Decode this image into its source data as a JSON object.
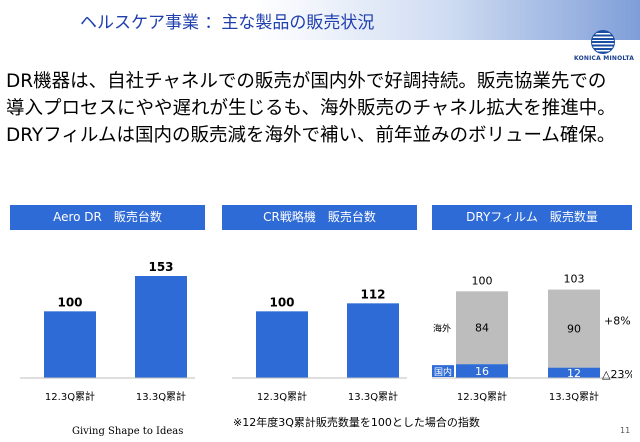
{
  "header": {
    "title": "ヘルスケア事業 ：主な製品の販売状況",
    "logo_text": "KONICA MINOLTA"
  },
  "summary": {
    "lines": [
      "DR機器は、自社チャネルでの販売が国内外で好調持続。販売協業先での",
      "導入プロセスにやや遅れが生じるも、海外販売のチャネル拡大を推進中。",
      "DRYフィルムは国内の販売減を海外で補い、前年並みのボリューム確保。"
    ]
  },
  "chart_data": [
    {
      "type": "bar",
      "title": "Aero DR　販売台数",
      "categories": [
        "12.3Q累計",
        "13.3Q累計"
      ],
      "values": [
        100,
        153
      ],
      "ylim": [
        0,
        165
      ],
      "bar_color": "#2e6bd6"
    },
    {
      "type": "bar",
      "title": "CR戦略機　販売台数",
      "categories": [
        "12.3Q累計",
        "13.3Q累計"
      ],
      "values": [
        100,
        112
      ],
      "ylim": [
        0,
        165
      ],
      "bar_color": "#2e6bd6"
    },
    {
      "type": "bar",
      "stacked": true,
      "title": "DRYフィルム　販売数量",
      "categories": [
        "12.3Q累計",
        "13.3Q累計"
      ],
      "totals": [
        100,
        103
      ],
      "series": [
        {
          "name": "国内",
          "values": [
            16,
            12
          ],
          "color": "#2e6bd6"
        },
        {
          "name": "海外",
          "values": [
            84,
            90
          ],
          "color": "#bdbdbd"
        }
      ],
      "changes": {
        "海外": "+8%",
        "国内": "△23%"
      },
      "ylim": [
        0,
        120
      ]
    }
  ],
  "footnote": "※12年度3Q累計販売数量を100とした場合の指数",
  "tagline": "Giving Shape to Ideas",
  "page_number": "11"
}
